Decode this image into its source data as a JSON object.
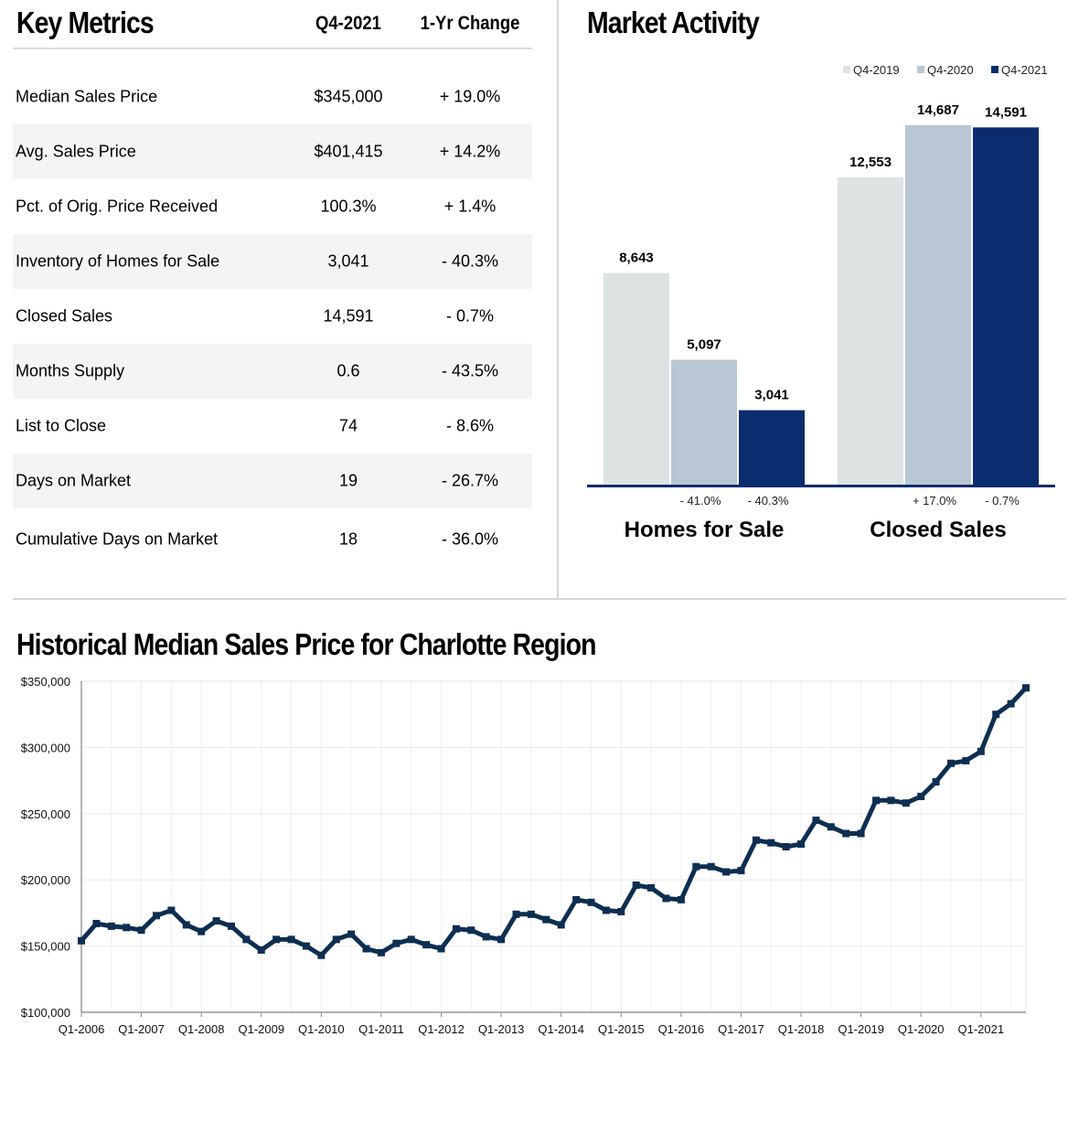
{
  "key_metrics": {
    "title": "Key Metrics",
    "col1": "Q4-2021",
    "col2": "1-Yr Change",
    "rows": [
      {
        "label": "Median Sales Price",
        "value": "$345,000",
        "change": "+ 19.0%"
      },
      {
        "label": "Avg. Sales Price",
        "value": "$401,415",
        "change": "+ 14.2%"
      },
      {
        "label": "Pct. of Orig. Price Received",
        "value": "100.3%",
        "change": "+ 1.4%"
      },
      {
        "label": "Inventory of Homes for Sale",
        "value": "3,041",
        "change": "- 40.3%"
      },
      {
        "label": "Closed Sales",
        "value": "14,591",
        "change": "- 0.7%"
      },
      {
        "label": "Months Supply",
        "value": "0.6",
        "change": "- 43.5%"
      },
      {
        "label": "List to Close",
        "value": "74",
        "change": "- 8.6%"
      },
      {
        "label": "Days on Market",
        "value": "19",
        "change": "- 26.7%"
      },
      {
        "label": "Cumulative Days on Market",
        "value": "18",
        "change": "- 36.0%"
      }
    ]
  },
  "market_activity": {
    "title": "Market Activity"
  },
  "historical": {
    "title": "Historical Median Sales Price for Charlotte Region"
  },
  "chart_data": [
    {
      "type": "bar",
      "title": "Market Activity",
      "categories": [
        "Homes for Sale",
        "Closed Sales"
      ],
      "series": [
        {
          "name": "Q4-2019",
          "color": "#dde2e3",
          "values": [
            8643,
            12553
          ],
          "value_labels": [
            "8,643",
            "12,553"
          ]
        },
        {
          "name": "Q4-2020",
          "color": "#b8c7d3",
          "values": [
            5097,
            14687
          ],
          "value_labels": [
            "5,097",
            "14,687"
          ]
        },
        {
          "name": "Q4-2021",
          "color": "#0b2c6f",
          "values": [
            3041,
            14591
          ],
          "value_labels": [
            "3,041",
            "14,591"
          ]
        }
      ],
      "change_labels": [
        [
          "- 41.0%",
          "- 40.3%"
        ],
        [
          "+ 17.0%",
          "- 0.7%"
        ]
      ],
      "ylim": [
        0,
        15500
      ],
      "legend": "top-right",
      "axis_color": "#0b2c6f"
    },
    {
      "type": "line",
      "title": "Historical Median Sales Price for Charlotte Region",
      "x_tick_labels": [
        "Q1-2006",
        "Q1-2007",
        "Q1-2008",
        "Q1-2009",
        "Q1-2010",
        "Q1-2011",
        "Q1-2012",
        "Q1-2013",
        "Q1-2014",
        "Q1-2015",
        "Q1-2016",
        "Q1-2017",
        "Q1-2018",
        "Q1-2019",
        "Q1-2020",
        "Q1-2021"
      ],
      "y_tick_labels": [
        "$100,000",
        "$150,000",
        "$200,000",
        "$250,000",
        "$300,000",
        "$350,000"
      ],
      "y_ticks": [
        100000,
        150000,
        200000,
        250000,
        300000,
        350000
      ],
      "ylim": [
        100000,
        350000
      ],
      "grid": true,
      "line_color": "#0e2e52",
      "values": [
        154000,
        167000,
        165000,
        164000,
        162000,
        173000,
        177000,
        166000,
        161000,
        169000,
        165000,
        155000,
        147000,
        155000,
        155000,
        150000,
        143000,
        155000,
        159000,
        148000,
        145000,
        152000,
        155000,
        151000,
        148000,
        163000,
        162000,
        157000,
        155000,
        174000,
        174000,
        170000,
        166000,
        185000,
        183000,
        177000,
        176000,
        196000,
        194000,
        186000,
        185000,
        210000,
        210000,
        206000,
        207000,
        230000,
        228000,
        225000,
        227000,
        245000,
        240000,
        235000,
        235000,
        260000,
        260000,
        258000,
        263000,
        274000,
        288000,
        290000,
        297000,
        325000,
        333000,
        345000
      ]
    }
  ]
}
